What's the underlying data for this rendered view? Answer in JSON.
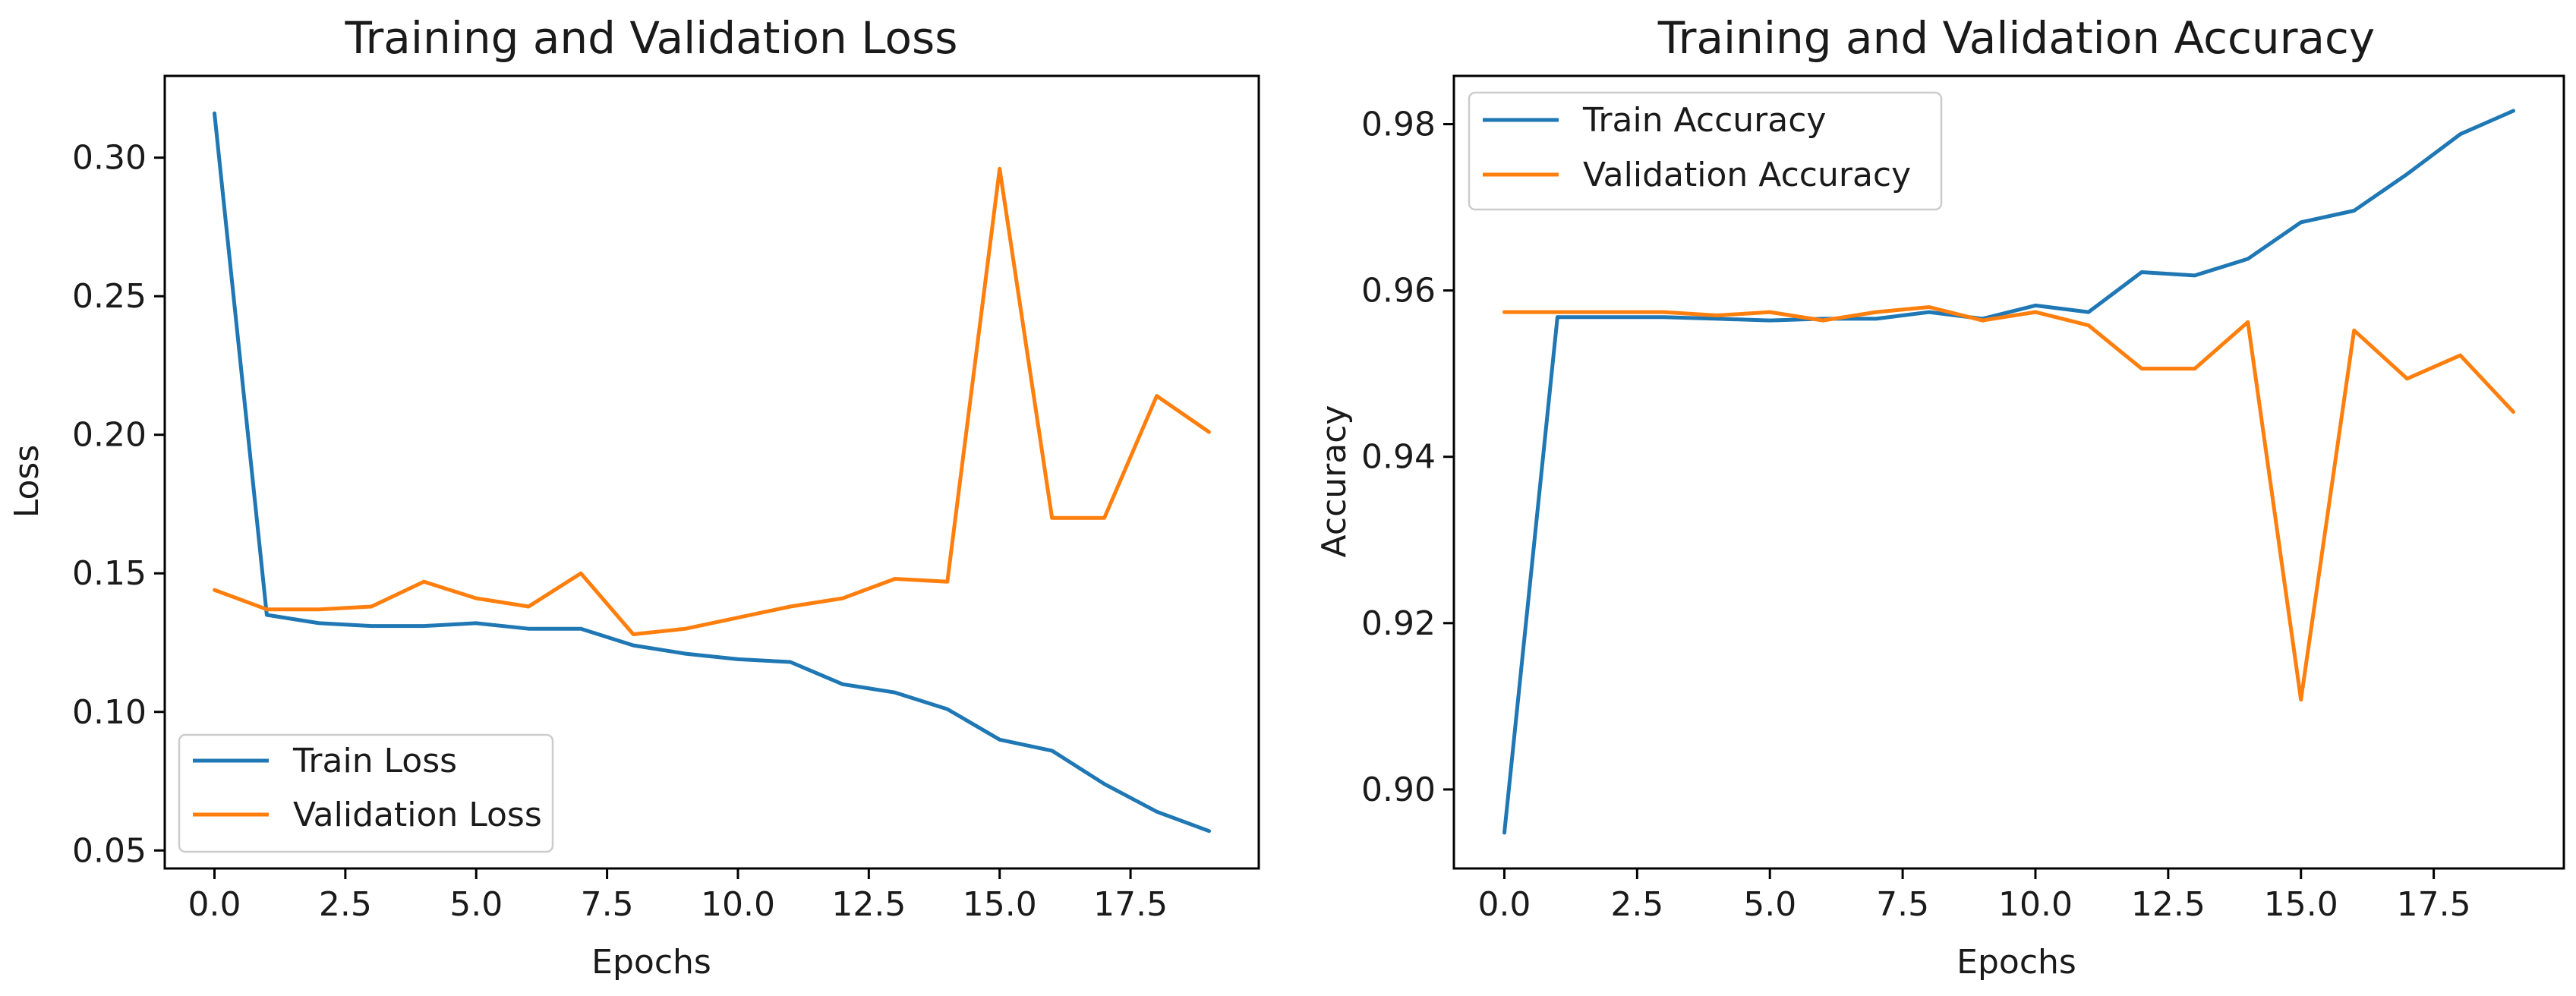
{
  "colors": {
    "train": "#1f77b4",
    "validation": "#ff7f0e"
  },
  "chart_data": [
    {
      "type": "line",
      "title": "Training and Validation Loss",
      "xlabel": "Epochs",
      "ylabel": "Loss",
      "xlim": [
        -0.95,
        19.95
      ],
      "ylim": [
        0.0435,
        0.3295
      ],
      "xticks": [
        0,
        2.5,
        5,
        7.5,
        10,
        12.5,
        15,
        17.5
      ],
      "xtick_labels": [
        "0.0",
        "2.5",
        "5.0",
        "7.5",
        "10.0",
        "12.5",
        "15.0",
        "17.5"
      ],
      "yticks": [
        0.05,
        0.1,
        0.15,
        0.2,
        0.25,
        0.3
      ],
      "ytick_labels": [
        "0.05",
        "0.10",
        "0.15",
        "0.20",
        "0.25",
        "0.30"
      ],
      "legend_position": "lower-left",
      "x": [
        0,
        1,
        2,
        3,
        4,
        5,
        6,
        7,
        8,
        9,
        10,
        11,
        12,
        13,
        14,
        15,
        16,
        17,
        18,
        19
      ],
      "series": [
        {
          "name": "Train Loss",
          "color_key": "train",
          "values": [
            0.316,
            0.135,
            0.132,
            0.131,
            0.131,
            0.132,
            0.13,
            0.13,
            0.124,
            0.121,
            0.119,
            0.118,
            0.11,
            0.107,
            0.101,
            0.09,
            0.086,
            0.074,
            0.064,
            0.057
          ]
        },
        {
          "name": "Validation Loss",
          "color_key": "validation",
          "values": [
            0.144,
            0.137,
            0.137,
            0.138,
            0.147,
            0.141,
            0.138,
            0.15,
            0.128,
            0.13,
            0.134,
            0.138,
            0.141,
            0.148,
            0.147,
            0.296,
            0.17,
            0.17,
            0.214,
            0.201
          ]
        }
      ]
    },
    {
      "type": "line",
      "title": "Training and Validation Accuracy",
      "xlabel": "Epochs",
      "ylabel": "Accuracy",
      "xlim": [
        -0.95,
        19.95
      ],
      "ylim": [
        0.8905,
        0.9858
      ],
      "xticks": [
        0,
        2.5,
        5,
        7.5,
        10,
        12.5,
        15,
        17.5
      ],
      "xtick_labels": [
        "0.0",
        "2.5",
        "5.0",
        "7.5",
        "10.0",
        "12.5",
        "15.0",
        "17.5"
      ],
      "yticks": [
        0.9,
        0.92,
        0.94,
        0.96,
        0.98
      ],
      "ytick_labels": [
        "0.90",
        "0.92",
        "0.94",
        "0.96",
        "0.98"
      ],
      "legend_position": "upper-left",
      "x": [
        0,
        1,
        2,
        3,
        4,
        5,
        6,
        7,
        8,
        9,
        10,
        11,
        12,
        13,
        14,
        15,
        16,
        17,
        18,
        19
      ],
      "series": [
        {
          "name": "Train Accuracy",
          "color_key": "train",
          "values": [
            0.8948,
            0.9568,
            0.9568,
            0.9568,
            0.9566,
            0.9564,
            0.9566,
            0.9566,
            0.9574,
            0.9566,
            0.9582,
            0.9574,
            0.9622,
            0.9618,
            0.9638,
            0.9682,
            0.9696,
            0.974,
            0.9788,
            0.9816
          ]
        },
        {
          "name": "Validation Accuracy",
          "color_key": "validation",
          "values": [
            0.9574,
            0.9574,
            0.9574,
            0.9574,
            0.957,
            0.9574,
            0.9564,
            0.9574,
            0.958,
            0.9564,
            0.9574,
            0.9558,
            0.9506,
            0.9506,
            0.9562,
            0.9108,
            0.9552,
            0.9494,
            0.9522,
            0.9454
          ]
        }
      ]
    }
  ]
}
